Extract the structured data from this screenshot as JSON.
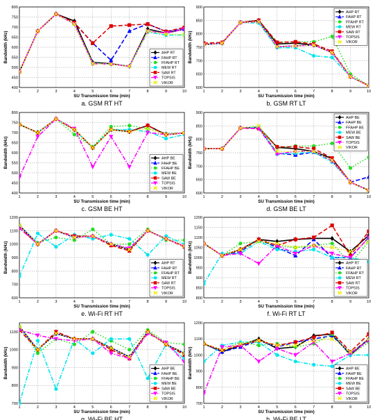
{
  "figure": {
    "series_styles": [
      {
        "color": "#000000",
        "marker": "diamond",
        "dash": "none"
      },
      {
        "color": "#0000ff",
        "marker": "triangle",
        "dash": "dashed"
      },
      {
        "color": "#22dd22",
        "marker": "circle",
        "dash": "dotted"
      },
      {
        "color": "#00e5ee",
        "marker": "circle",
        "dash": "dashdot"
      },
      {
        "color": "#dd0000",
        "marker": "square",
        "dash": "dashed"
      },
      {
        "color": "#ff00ff",
        "marker": "triangle-down",
        "dash": "dashdot"
      },
      {
        "color": "#eeee00",
        "marker": "x",
        "dash": "dotted"
      }
    ]
  },
  "chart_data": [
    {
      "type": "line",
      "caption": "a. GSM RT HT",
      "xlabel": "SU Transmission time (min)",
      "ylabel": "Bandwidth (kHz)",
      "xlim": [
        1,
        10
      ],
      "ylim": [
        400,
        800
      ],
      "yticks": [
        400,
        450,
        500,
        550,
        600,
        650,
        700,
        750,
        800
      ],
      "x": [
        1,
        2,
        3,
        4,
        5,
        6,
        7,
        8,
        9,
        10
      ],
      "legend_position": "lower-right",
      "series": [
        {
          "name": "AHP RT",
          "values": [
            478,
            680,
            765,
            730,
            525,
            518,
            505,
            690,
            670,
            690
          ]
        },
        {
          "name": "FAHP RT",
          "values": [
            478,
            680,
            765,
            720,
            620,
            535,
            680,
            715,
            678,
            690
          ]
        },
        {
          "name": "FFAHP RT",
          "values": [
            478,
            680,
            765,
            715,
            518,
            516,
            505,
            680,
            665,
            662
          ]
        },
        {
          "name": "MEW RT",
          "values": [
            478,
            680,
            765,
            715,
            520,
            516,
            505,
            675,
            660,
            660
          ]
        },
        {
          "name": "SAW RT",
          "values": [
            478,
            680,
            765,
            722,
            620,
            705,
            710,
            715,
            678,
            698
          ]
        },
        {
          "name": "TOPSIS",
          "values": [
            478,
            680,
            765,
            715,
            518,
            516,
            505,
            680,
            670,
            690
          ]
        },
        {
          "name": "VIKOR",
          "values": [
            478,
            680,
            765,
            715,
            518,
            516,
            505,
            680,
            665,
            662
          ]
        }
      ]
    },
    {
      "type": "line",
      "caption": "b. GSM RT LT",
      "xlabel": "SU Transmission time (min)",
      "ylabel": "Bandwidth (kHz)",
      "xlim": [
        1,
        10
      ],
      "ylim": [
        600,
        900
      ],
      "yticks": [
        600,
        650,
        700,
        750,
        800,
        850,
        900
      ],
      "x": [
        1,
        2,
        3,
        4,
        5,
        6,
        7,
        8,
        9,
        10
      ],
      "legend_position": "top-right",
      "series": [
        {
          "name": "AHP RT",
          "values": [
            760,
            765,
            842,
            850,
            762,
            765,
            758,
            730,
            640,
            607
          ]
        },
        {
          "name": "FAHP RT",
          "values": [
            760,
            765,
            842,
            845,
            752,
            755,
            758,
            730,
            640,
            607
          ]
        },
        {
          "name": "FFAHP RT",
          "values": [
            760,
            765,
            842,
            845,
            768,
            770,
            770,
            790,
            650,
            607
          ]
        },
        {
          "name": "MEW RT",
          "values": [
            760,
            765,
            842,
            840,
            748,
            748,
            718,
            712,
            640,
            607
          ]
        },
        {
          "name": "SAW RT",
          "values": [
            765,
            768,
            842,
            850,
            768,
            770,
            762,
            735,
            640,
            607
          ]
        },
        {
          "name": "TOPSIS",
          "values": [
            760,
            765,
            842,
            845,
            752,
            755,
            758,
            730,
            640,
            607
          ]
        },
        {
          "name": "VIKOR",
          "values": [
            760,
            765,
            842,
            845,
            752,
            755,
            758,
            730,
            640,
            607
          ]
        }
      ]
    },
    {
      "type": "line",
      "caption": "c. GSM BE HT",
      "xlabel": "SU Transmission time (min)",
      "ylabel": "Bandwidth (kHz)",
      "xlim": [
        1,
        10
      ],
      "ylim": [
        400,
        800
      ],
      "yticks": [
        400,
        450,
        500,
        550,
        600,
        650,
        700,
        750,
        800
      ],
      "x": [
        1,
        2,
        3,
        4,
        5,
        6,
        7,
        8,
        9,
        10
      ],
      "legend_position": "lower-right",
      "series": [
        {
          "name": "AHP BE",
          "values": [
            740,
            700,
            768,
            715,
            625,
            715,
            705,
            735,
            690,
            698
          ]
        },
        {
          "name": "FAHP BE",
          "values": [
            740,
            700,
            768,
            715,
            625,
            715,
            705,
            735,
            690,
            698
          ]
        },
        {
          "name": "FFAHP BE",
          "values": [
            740,
            700,
            768,
            690,
            630,
            730,
            735,
            720,
            695,
            700
          ]
        },
        {
          "name": "MEW BE",
          "values": [
            740,
            700,
            768,
            715,
            625,
            715,
            715,
            705,
            670,
            690
          ]
        },
        {
          "name": "SAW BE",
          "values": [
            740,
            700,
            768,
            715,
            625,
            715,
            705,
            735,
            690,
            698
          ]
        },
        {
          "name": "TOPSIS",
          "values": [
            478,
            680,
            768,
            720,
            530,
            680,
            530,
            700,
            690,
            698
          ]
        },
        {
          "name": "VIKOR",
          "values": [
            740,
            700,
            768,
            715,
            625,
            715,
            705,
            720,
            690,
            698
          ]
        }
      ]
    },
    {
      "type": "line",
      "caption": "d. GSM BE LT",
      "xlabel": "SU Transmission time (min)",
      "ylabel": "Bandwidth (kHz)",
      "xlim": [
        1,
        10
      ],
      "ylim": [
        600,
        900
      ],
      "yticks": [
        600,
        650,
        700,
        750,
        800,
        850,
        900
      ],
      "x": [
        1,
        2,
        3,
        4,
        5,
        6,
        7,
        8,
        9,
        10
      ],
      "legend_position": "top-right",
      "series": [
        {
          "name": "AHP BE",
          "values": [
            765,
            765,
            842,
            845,
            770,
            765,
            755,
            728,
            640,
            610
          ]
        },
        {
          "name": "FAHP BE",
          "values": [
            765,
            765,
            842,
            845,
            748,
            742,
            752,
            720,
            640,
            660
          ]
        },
        {
          "name": "FFAHP BE",
          "values": [
            765,
            765,
            842,
            845,
            770,
            775,
            775,
            785,
            693,
            733
          ]
        },
        {
          "name": "MEW BE",
          "values": [
            765,
            765,
            842,
            845,
            745,
            748,
            752,
            715,
            640,
            610
          ]
        },
        {
          "name": "SAW BE",
          "values": [
            765,
            765,
            842,
            840,
            772,
            772,
            765,
            730,
            640,
            610
          ]
        },
        {
          "name": "TOPSIS",
          "values": [
            765,
            765,
            842,
            840,
            745,
            755,
            755,
            720,
            640,
            610
          ]
        },
        {
          "name": "VIKOR",
          "values": [
            765,
            765,
            842,
            850,
            755,
            755,
            755,
            722,
            640,
            610
          ]
        }
      ]
    },
    {
      "type": "line",
      "caption": "e. Wi-Fi RT HT",
      "xlabel": "SU Transmission time (min)",
      "ylabel": "Bandwidth (kHz)",
      "xlim": [
        1,
        10
      ],
      "ylim": [
        600,
        1200
      ],
      "yticks": [
        600,
        700,
        800,
        900,
        1000,
        1100,
        1200
      ],
      "x": [
        1,
        2,
        3,
        4,
        5,
        6,
        7,
        8,
        9,
        10
      ],
      "legend_position": "lower-right",
      "series": [
        {
          "name": "AHP RT",
          "values": [
            1140,
            1000,
            1100,
            1050,
            1060,
            1000,
            960,
            1100,
            1040,
            985
          ]
        },
        {
          "name": "FAHP RT",
          "values": [
            1140,
            1000,
            1100,
            1050,
            1060,
            1000,
            960,
            1100,
            1040,
            985
          ]
        },
        {
          "name": "FFAHP RT",
          "values": [
            1140,
            1010,
            1050,
            1030,
            1110,
            1000,
            1000,
            1110,
            1030,
            1030
          ]
        },
        {
          "name": "MEW RT",
          "values": [
            760,
            1080,
            980,
            1070,
            1040,
            1070,
            1040,
            920,
            1060,
            1000
          ]
        },
        {
          "name": "SAW RT",
          "values": [
            1120,
            1000,
            1100,
            1060,
            1060,
            990,
            950,
            1100,
            1040,
            980
          ]
        },
        {
          "name": "TOPSIS",
          "values": [
            1120,
            1000,
            1100,
            1050,
            1060,
            1000,
            970,
            1100,
            1040,
            985
          ]
        },
        {
          "name": "VIKOR",
          "values": [
            1140,
            1000,
            1100,
            1050,
            1060,
            1000,
            960,
            1100,
            1040,
            985
          ]
        }
      ]
    },
    {
      "type": "line",
      "caption": "f. Wi-Fi RT LT",
      "xlabel": "SU Transmission time (min)",
      "ylabel": "Bandwidth (kHz)",
      "xlim": [
        1,
        10
      ],
      "ylim": [
        800,
        1200
      ],
      "yticks": [
        800,
        850,
        900,
        950,
        1000,
        1050,
        1100,
        1150,
        1200
      ],
      "x": [
        1,
        2,
        3,
        4,
        5,
        6,
        7,
        8,
        9,
        10
      ],
      "legend_position": "lower-right",
      "series": [
        {
          "name": "AHP RT",
          "values": [
            1070,
            1010,
            1040,
            1090,
            1080,
            1090,
            1095,
            1095,
            1030,
            1110
          ]
        },
        {
          "name": "FAHP RT",
          "values": [
            1070,
            1010,
            1030,
            1090,
            1050,
            1010,
            1090,
            1000,
            1000,
            1100
          ]
        },
        {
          "name": "FFAHP RT",
          "values": [
            1070,
            1010,
            1070,
            1080,
            1060,
            1050,
            1060,
            1070,
            970,
            1080
          ]
        },
        {
          "name": "MEW RT",
          "values": [
            870,
            1020,
            1020,
            1080,
            1040,
            1030,
            1040,
            1000,
            1000,
            980
          ]
        },
        {
          "name": "SAW RT",
          "values": [
            1070,
            1010,
            1040,
            1090,
            1060,
            1090,
            1100,
            1160,
            1010,
            1130
          ]
        },
        {
          "name": "TOPSIS",
          "values": [
            1070,
            1010,
            1020,
            970,
            1060,
            1020,
            1060,
            1020,
            1000,
            1100
          ]
        },
        {
          "name": "VIKOR",
          "values": [
            1070,
            1010,
            1040,
            1080,
            1070,
            1050,
            1060,
            1050,
            1030,
            1080
          ]
        }
      ]
    },
    {
      "type": "line",
      "caption": "g. Wi-Fi BE HT",
      "xlabel": "SU Transmission time (min)",
      "ylabel": "Bandwidth (kHz)",
      "xlim": [
        1,
        10
      ],
      "ylim": [
        700,
        1150
      ],
      "yticks": [
        700,
        800,
        900,
        1000,
        1100
      ],
      "x": [
        1,
        2,
        3,
        4,
        5,
        6,
        7,
        8,
        9,
        10
      ],
      "legend_position": "lower-right",
      "series": [
        {
          "name": "AHP BE",
          "values": [
            1130,
            1000,
            1090,
            1060,
            1060,
            1010,
            960,
            1100,
            1030,
            980
          ]
        },
        {
          "name": "FAHP BE",
          "values": [
            1130,
            1000,
            1090,
            1060,
            1060,
            1010,
            960,
            1100,
            1030,
            980
          ]
        },
        {
          "name": "FFAHP BE",
          "values": [
            1130,
            980,
            1060,
            1030,
            1100,
            1050,
            1000,
            1110,
            1040,
            1030
          ]
        },
        {
          "name": "MEW BE",
          "values": [
            700,
            1050,
            780,
            1060,
            980,
            1060,
            1060,
            840,
            1030,
            950
          ]
        },
        {
          "name": "SAW BE",
          "values": [
            1110,
            1000,
            1100,
            1060,
            1060,
            1000,
            950,
            1100,
            1030,
            970
          ]
        },
        {
          "name": "TOPSIS",
          "values": [
            1110,
            1080,
            1060,
            1050,
            1060,
            980,
            950,
            1090,
            1040,
            930
          ]
        },
        {
          "name": "VIKOR",
          "values": [
            1130,
            1000,
            1090,
            1060,
            1060,
            1010,
            960,
            1100,
            1030,
            980
          ]
        }
      ]
    },
    {
      "type": "line",
      "caption": "h. Wi-Fi BE LT",
      "xlabel": "SU Transmission time (min)",
      "ylabel": "Bandwidth (kHz)",
      "xlim": [
        1,
        10
      ],
      "ylim": [
        700,
        1200
      ],
      "yticks": [
        700,
        800,
        900,
        1000,
        1100,
        1200
      ],
      "x": [
        1,
        2,
        3,
        4,
        5,
        6,
        7,
        8,
        9,
        10
      ],
      "legend_position": "lower-right",
      "series": [
        {
          "name": "AHP BE",
          "values": [
            1070,
            1020,
            1060,
            1100,
            1040,
            1050,
            1120,
            1130,
            1000,
            1100
          ]
        },
        {
          "name": "FAHP BE",
          "values": [
            1070,
            1020,
            1050,
            1090,
            1050,
            1080,
            1100,
            1120,
            1010,
            1100
          ]
        },
        {
          "name": "FFAHP BE",
          "values": [
            1070,
            1030,
            1080,
            1060,
            1070,
            1050,
            1070,
            1130,
            1000,
            1080
          ]
        },
        {
          "name": "MEW BE",
          "values": [
            960,
            1060,
            1080,
            1080,
            1000,
            960,
            940,
            930,
            1000,
            1000
          ]
        },
        {
          "name": "SAW BE",
          "values": [
            1070,
            1030,
            1060,
            1090,
            1060,
            1080,
            1110,
            1140,
            1020,
            1130
          ]
        },
        {
          "name": "TOPSIS",
          "values": [
            760,
            1050,
            1060,
            960,
            1040,
            1000,
            1080,
            960,
            1010,
            1090
          ]
        },
        {
          "name": "VIKOR",
          "values": [
            1070,
            1030,
            1070,
            1090,
            1060,
            1060,
            1090,
            1100,
            1020,
            1100
          ]
        }
      ]
    }
  ]
}
